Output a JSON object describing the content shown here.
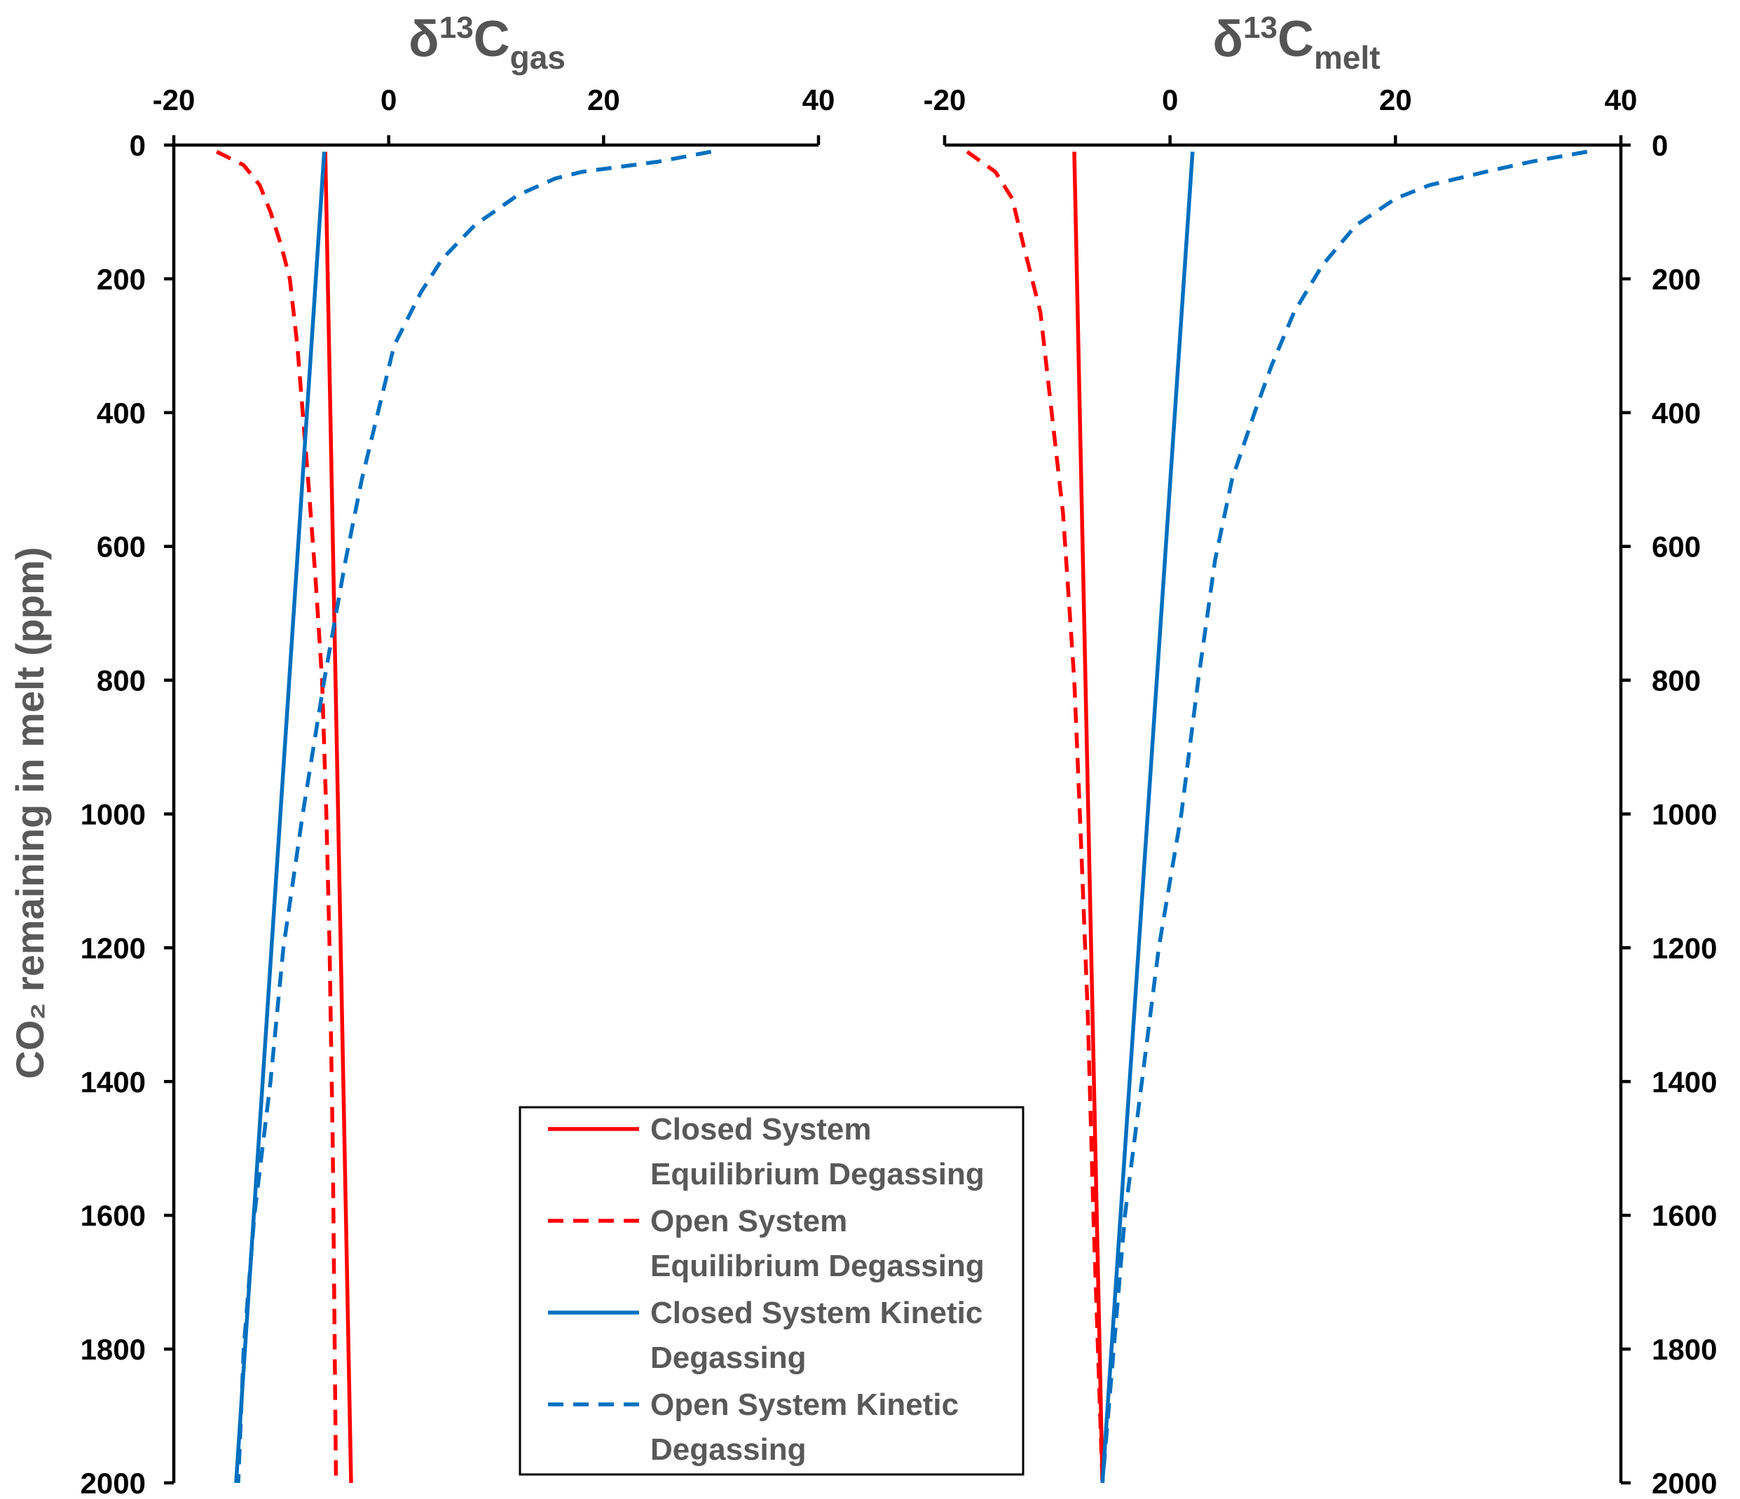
{
  "chart_data": [
    {
      "type": "line",
      "title": {
        "base": "δ",
        "sup": "13",
        "main": "C",
        "sub": "gas"
      },
      "ylabel": "CO₂ remaining in melt (ppm)",
      "xlim": [
        -20,
        40
      ],
      "ylim": [
        0,
        2000
      ],
      "y_reversed": true,
      "x_axis_position": "top",
      "y_axis_side": "left",
      "xticks": [
        -20,
        0,
        20,
        40
      ],
      "yticks": [
        0,
        200,
        400,
        600,
        800,
        1000,
        1200,
        1400,
        1600,
        1800,
        2000
      ],
      "series": [
        {
          "name": "Closed System Equilibrium Degassing",
          "color": "#ff0000",
          "dash": "solid",
          "points": [
            [
              -5.9,
              10
            ],
            [
              -3.5,
              2000
            ]
          ]
        },
        {
          "name": "Open System Equilibrium Degassing",
          "color": "#ff0000",
          "dash": "dashed",
          "points": [
            [
              -16,
              10
            ],
            [
              -13.5,
              30
            ],
            [
              -12,
              60
            ],
            [
              -11,
              100
            ],
            [
              -10,
              150
            ],
            [
              -9.2,
              200
            ],
            [
              -8.5,
              300
            ],
            [
              -8,
              400
            ],
            [
              -7.5,
              500
            ],
            [
              -6.8,
              650
            ],
            [
              -6.2,
              800
            ],
            [
              -5.8,
              1000
            ],
            [
              -5.5,
              1200
            ],
            [
              -5.2,
              1500
            ],
            [
              -4.9,
              2000
            ]
          ]
        },
        {
          "name": "Closed System Kinetic Degassing",
          "color": "#0070c0",
          "dash": "solid",
          "points": [
            [
              -6,
              10
            ],
            [
              -14.2,
              2000
            ]
          ]
        },
        {
          "name": "Open System Kinetic Degassing",
          "color": "#0070c0",
          "dash": "dashed",
          "points": [
            [
              30,
              10
            ],
            [
              25,
              25
            ],
            [
              18,
              40
            ],
            [
              15.5,
              50
            ],
            [
              12,
              75
            ],
            [
              8,
              120
            ],
            [
              5,
              170
            ],
            [
              3,
              220
            ],
            [
              0.5,
              300
            ],
            [
              -1,
              400
            ],
            [
              -2.5,
              500
            ],
            [
              -4,
              620
            ],
            [
              -6,
              800
            ],
            [
              -8,
              1000
            ],
            [
              -9.8,
              1200
            ],
            [
              -11,
              1400
            ],
            [
              -12.5,
              1600
            ],
            [
              -13.5,
              1800
            ],
            [
              -14,
              2000
            ]
          ]
        }
      ]
    },
    {
      "type": "line",
      "title": {
        "base": "δ",
        "sup": "13",
        "main": "C",
        "sub": "melt"
      },
      "xlim": [
        -20,
        40
      ],
      "ylim": [
        0,
        2000
      ],
      "y_reversed": true,
      "x_axis_position": "top",
      "y_axis_side": "right",
      "xticks": [
        -20,
        0,
        20,
        40
      ],
      "yticks": [
        0,
        200,
        400,
        600,
        800,
        1000,
        1200,
        1400,
        1600,
        1800,
        2000
      ],
      "series": [
        {
          "name": "Closed System Equilibrium Degassing",
          "color": "#ff0000",
          "dash": "solid",
          "points": [
            [
              -8.5,
              10
            ],
            [
              -6,
              2000
            ]
          ]
        },
        {
          "name": "Open System Equilibrium Degassing",
          "color": "#ff0000",
          "dash": "dashed",
          "points": [
            [
              -18,
              10
            ],
            [
              -15.5,
              40
            ],
            [
              -14,
              80
            ],
            [
              -13,
              150
            ],
            [
              -11.5,
              250
            ],
            [
              -10.5,
              400
            ],
            [
              -9.5,
              550
            ],
            [
              -8.5,
              800
            ],
            [
              -8,
              1000
            ],
            [
              -7.3,
              1300
            ],
            [
              -6.8,
              1600
            ],
            [
              -6,
              2000
            ]
          ]
        },
        {
          "name": "Closed System Kinetic Degassing",
          "color": "#0070c0",
          "dash": "solid",
          "points": [
            [
              2,
              10
            ],
            [
              -6,
              2000
            ]
          ]
        },
        {
          "name": "Open System Kinetic Degassing",
          "color": "#0070c0",
          "dash": "dashed",
          "points": [
            [
              37,
              10
            ],
            [
              32,
              25
            ],
            [
              28,
              40
            ],
            [
              23,
              60
            ],
            [
              20,
              80
            ],
            [
              16.5,
              120
            ],
            [
              13.5,
              180
            ],
            [
              11,
              250
            ],
            [
              9,
              330
            ],
            [
              7.5,
              400
            ],
            [
              5.5,
              500
            ],
            [
              4,
              620
            ],
            [
              2.5,
              800
            ],
            [
              1,
              1000
            ],
            [
              -1,
              1200
            ],
            [
              -2.5,
              1400
            ],
            [
              -4,
              1600
            ],
            [
              -5,
              1800
            ],
            [
              -6,
              2000
            ]
          ]
        }
      ]
    }
  ],
  "legend": {
    "placement": "bottom-center",
    "entries": [
      {
        "line1": "Closed System",
        "line2": "Equilibrium Degassing",
        "color": "#ff0000",
        "dash": "solid"
      },
      {
        "line1": "Open System",
        "line2": "Equilibrium Degassing",
        "color": "#ff0000",
        "dash": "dashed"
      },
      {
        "line1": "Closed System Kinetic",
        "line2": "Degassing",
        "color": "#0070c0",
        "dash": "solid"
      },
      {
        "line1": "Open System Kinetic",
        "line2": "Degassing",
        "color": "#0070c0",
        "dash": "dashed"
      }
    ]
  }
}
